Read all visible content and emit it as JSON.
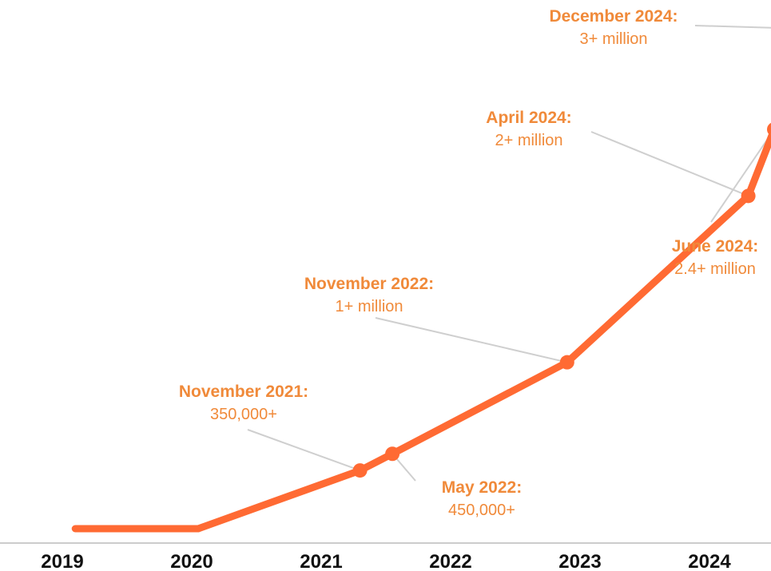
{
  "chart_data": {
    "type": "line",
    "x_ticks": [
      "2019",
      "2020",
      "2021",
      "2022",
      "2023",
      "2024"
    ],
    "series": [
      {
        "points": [
          {
            "x": 2019.1,
            "y": 0
          },
          {
            "x": 2020.05,
            "y": 0
          },
          {
            "x": 2021.3,
            "y": 350000
          },
          {
            "x": 2021.55,
            "y": 450000
          },
          {
            "x": 2022.9,
            "y": 1000000
          },
          {
            "x": 2024.3,
            "y": 2000000
          },
          {
            "x": 2024.5,
            "y": 2400000
          },
          {
            "x": 2024.95,
            "y": 3000000
          }
        ]
      }
    ],
    "annotations": [
      {
        "label": "November 2021:",
        "value": "350,000+",
        "point": 2
      },
      {
        "label": "May 2022:",
        "value": "450,000+",
        "point": 3
      },
      {
        "label": "November 2022:",
        "value": "1+ million",
        "point": 4
      },
      {
        "label": "April 2024:",
        "value": "2+ million",
        "point": 5
      },
      {
        "label": "June 2024:",
        "value": "2.4+ million",
        "point": 6
      },
      {
        "label": "December 2024:",
        "value": "3+ million",
        "point": 7
      }
    ],
    "grid": false,
    "legend": "none"
  },
  "colors": {
    "line": "#ff6a33",
    "annotation_text": "#f08a3a",
    "leader": "#cfcfcf",
    "axis": "#cccccc",
    "tick_text": "#111111"
  }
}
